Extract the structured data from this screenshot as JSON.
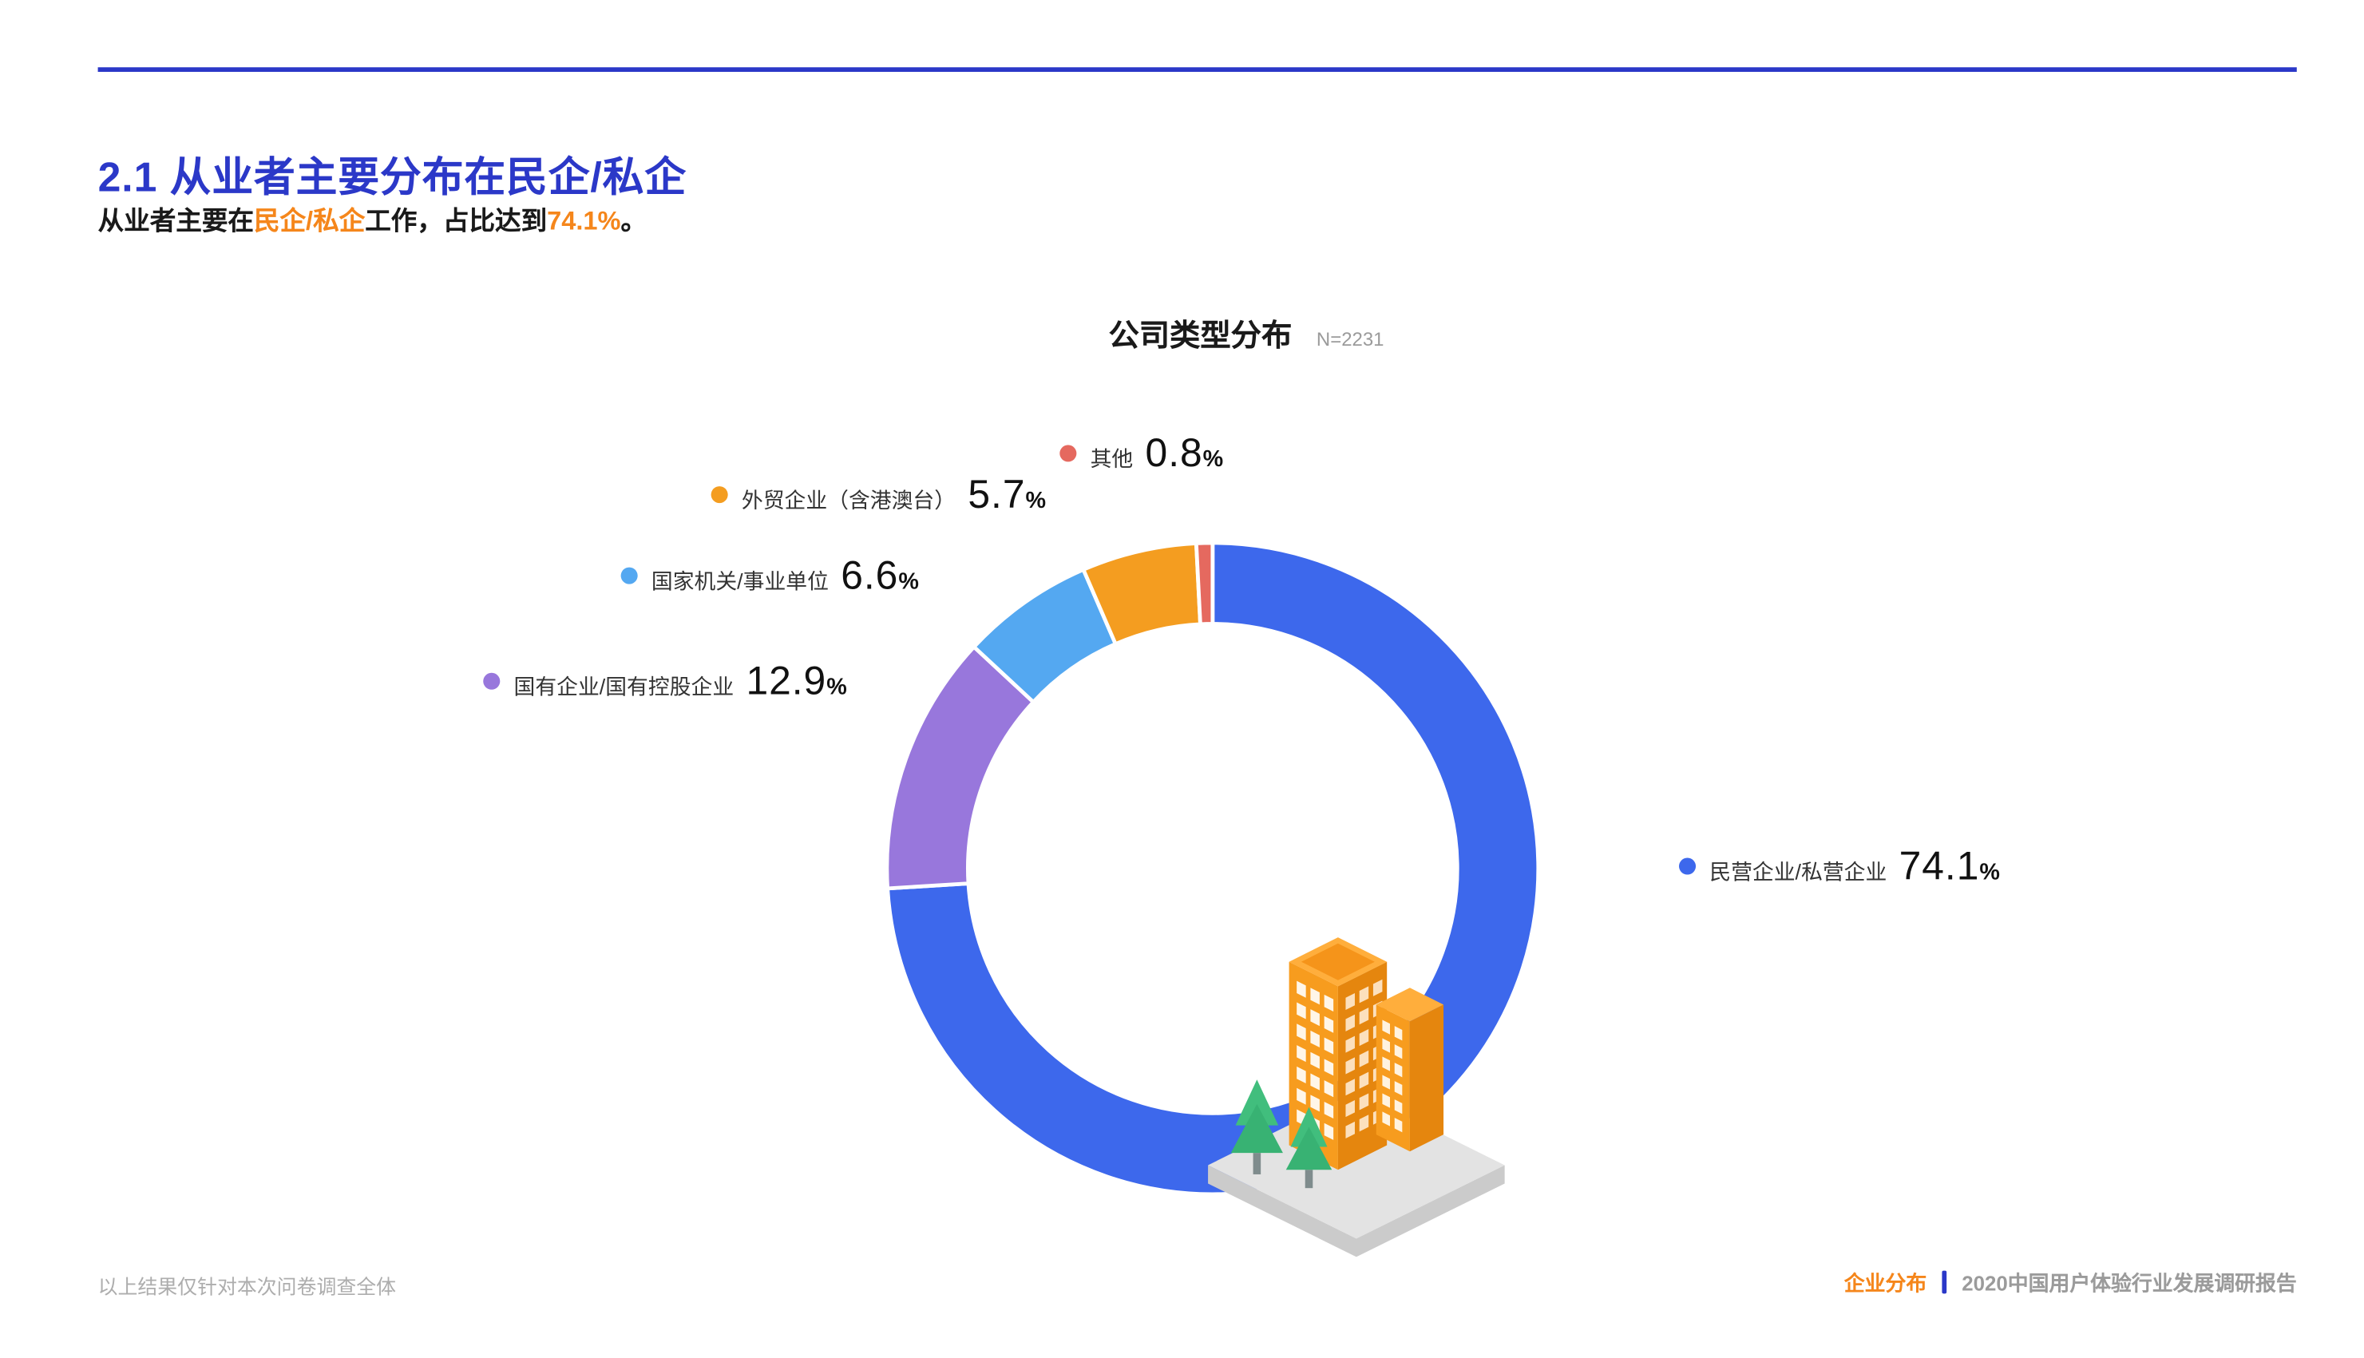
{
  "page": {
    "title": "2.1 从业者主要分布在民企/私企",
    "subtitle": {
      "p1": "从业者主要在",
      "h1": "民企/私企",
      "p2": "工作，占比达到",
      "h2": "74.1%",
      "p3": "。"
    },
    "footer_left": "以上结果仅针对本次问卷调查全体",
    "footer_tag": "企业分布",
    "footer_report": "2020中国用户体验行业发展调研报告"
  },
  "colors": {
    "accent_blue": "#2B38C8",
    "highlight_orange": "#F5861B",
    "text_dark": "#1A1A1A",
    "text_gray": "#9B9B9B"
  },
  "chart_data": {
    "type": "pie",
    "subtype": "donut",
    "title": "公司类型分布",
    "sample_label": "N=2231",
    "unit": "%",
    "start_angle_deg": 0,
    "direction": "clockwise",
    "inner_radius_ratio": 0.75,
    "legend_position": "around",
    "series": [
      {
        "label": "民营企业/私营企业",
        "value": 74.1,
        "color": "#3D68EC"
      },
      {
        "label": "国有企业/国有控股企业",
        "value": 12.9,
        "color": "#9877DC"
      },
      {
        "label": "国家机关/事业单位",
        "value": 6.6,
        "color": "#54A8F1"
      },
      {
        "label": "外贸企业（含港澳台）",
        "value": 5.7,
        "color": "#F49D20"
      },
      {
        "label": "其他",
        "value": 0.8,
        "color": "#E5695F"
      }
    ]
  }
}
